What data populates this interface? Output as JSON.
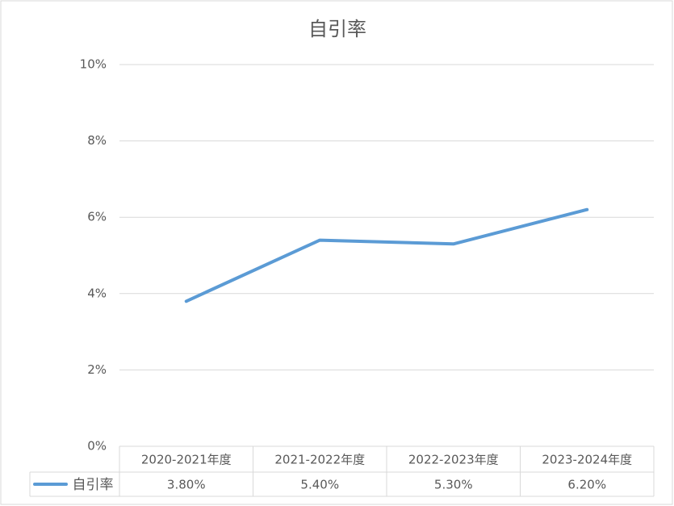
{
  "chart_data": {
    "type": "line",
    "title": "自引率",
    "categories": [
      "2020-2021年度",
      "2021-2022年度",
      "2022-2023年度",
      "2023-2024年度"
    ],
    "series": [
      {
        "name": "自引率",
        "color": "#5b9bd5",
        "values": [
          3.8,
          5.4,
          5.3,
          6.2
        ],
        "value_labels": [
          "3.80%",
          "5.40%",
          "5.30%",
          "6.20%"
        ]
      }
    ],
    "ylim": [
      0,
      10
    ],
    "yticks": [
      {
        "value": 0,
        "label": "0%"
      },
      {
        "value": 2,
        "label": "2%"
      },
      {
        "value": 4,
        "label": "4%"
      },
      {
        "value": 6,
        "label": "6%"
      },
      {
        "value": 8,
        "label": "8%"
      },
      {
        "value": 10,
        "label": "10%"
      }
    ],
    "grid": true
  }
}
